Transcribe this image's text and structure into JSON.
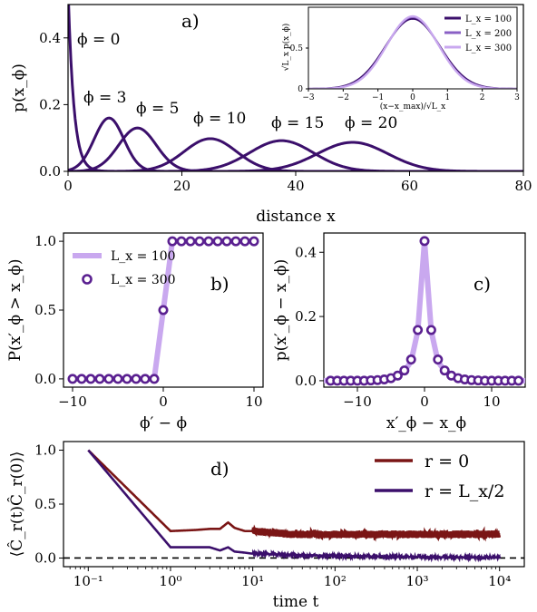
{
  "colors": {
    "dark_purple": "#3b0f6b",
    "mid_purple": "#8a60c5",
    "light_purple": "#c9a8ef",
    "dark_red": "#7a1515",
    "marker_purple": "#5a2090"
  },
  "chart_data": [
    {
      "id": "a",
      "type": "line",
      "panel_label": "a)",
      "xlabel": "distance x",
      "ylabel": "p(x_ϕ)",
      "xlim": [
        0,
        80
      ],
      "ylim": [
        0,
        0.5
      ],
      "xticks": [
        "0",
        "20",
        "40",
        "60",
        "80"
      ],
      "yticks": [
        "0.0",
        "0.2",
        "0.4"
      ],
      "annotations": [
        "ϕ = 0",
        "ϕ = 3",
        "ϕ = 5",
        "ϕ = 10",
        "ϕ = 15",
        "ϕ = 20"
      ],
      "curves": [
        {
          "phi": 0,
          "shape": "exponential",
          "peak": 0.55,
          "decay": 1.0
        },
        {
          "phi": 3,
          "mean": 7.2,
          "peak": 0.16,
          "sd": 2.6
        },
        {
          "phi": 5,
          "mean": 12.2,
          "peak": 0.13,
          "sd": 3.3
        },
        {
          "phi": 10,
          "mean": 25,
          "peak": 0.098,
          "sd": 4.6
        },
        {
          "phi": 15,
          "mean": 37.5,
          "peak": 0.092,
          "sd": 5.6
        },
        {
          "phi": 20,
          "mean": 50,
          "peak": 0.087,
          "sd": 6.2
        }
      ],
      "inset": {
        "type": "line",
        "xlabel": "(x−x_max)/√L_x",
        "ylabel": "√L_x p(x_ϕ)",
        "xlim": [
          -3,
          3
        ],
        "ylim": [
          0,
          1.0
        ],
        "xticks": [
          "−3",
          "−2",
          "−1",
          "0",
          "1",
          "2",
          "3"
        ],
        "yticks": [
          "0",
          "0.5"
        ],
        "series": [
          {
            "name": "L_x = 100",
            "peak": 0.86,
            "sd": 0.78
          },
          {
            "name": "L_x = 200",
            "peak": 0.88,
            "sd": 0.75
          },
          {
            "name": "L_x = 300",
            "peak": 0.89,
            "sd": 0.74
          }
        ]
      }
    },
    {
      "id": "b",
      "type": "line",
      "panel_label": "b)",
      "xlabel": "ϕ′ − ϕ",
      "ylabel": "P(x′_ϕ > x_ϕ)",
      "xlim": [
        -11,
        11
      ],
      "ylim": [
        -0.06,
        1.06
      ],
      "xticks": [
        "−10",
        "0",
        "10"
      ],
      "yticks": [
        "0.0",
        "0.5",
        "1.0"
      ],
      "legend_position": "upper-left",
      "series": [
        {
          "name": "L_x = 100",
          "style": "line",
          "x": [
            -10,
            -1,
            0,
            1,
            10
          ],
          "y": [
            0,
            0,
            0.5,
            1,
            1
          ]
        },
        {
          "name": "L_x = 300",
          "style": "circles",
          "x": [
            -10,
            -9,
            -8,
            -7,
            -6,
            -5,
            -4,
            -3,
            -2,
            -1,
            0,
            1,
            2,
            3,
            4,
            5,
            6,
            7,
            8,
            9,
            10
          ],
          "y": [
            0,
            0,
            0,
            0,
            0,
            0,
            0,
            0,
            0,
            0,
            0.5,
            1,
            1,
            1,
            1,
            1,
            1,
            1,
            1,
            1,
            1
          ]
        }
      ]
    },
    {
      "id": "c",
      "type": "line",
      "panel_label": "c)",
      "xlabel": "x′_ϕ − x_ϕ",
      "ylabel": "p(x′_ϕ − x_ϕ)",
      "xlim": [
        -15,
        15
      ],
      "ylim": [
        -0.02,
        0.46
      ],
      "xticks": [
        "−10",
        "0",
        "10"
      ],
      "yticks": [
        "0.0",
        "0.2",
        "0.4"
      ],
      "series": [
        {
          "name": "line",
          "style": "line",
          "x": [
            -15,
            -6,
            -4,
            -3,
            -2,
            -1,
            0,
            1,
            2,
            3,
            4,
            6,
            15
          ],
          "y": [
            0,
            0.003,
            0.015,
            0.03,
            0.06,
            0.155,
            0.435,
            0.155,
            0.06,
            0.03,
            0.015,
            0.003,
            0
          ]
        },
        {
          "name": "circles",
          "style": "circles",
          "x": [
            -14,
            -13,
            -12,
            -11,
            -10,
            -9,
            -8,
            -7,
            -6,
            -5,
            -4,
            -3,
            -2,
            -1,
            0,
            1,
            2,
            3,
            4,
            5,
            6,
            7,
            8,
            9,
            10,
            11,
            12,
            13,
            14
          ],
          "y": [
            0,
            0,
            0,
            0,
            0,
            0,
            0.001,
            0.002,
            0.004,
            0.008,
            0.016,
            0.032,
            0.066,
            0.158,
            0.435,
            0.158,
            0.066,
            0.032,
            0.016,
            0.008,
            0.004,
            0.002,
            0.001,
            0,
            0,
            0,
            0,
            0,
            0
          ]
        }
      ]
    },
    {
      "id": "d",
      "type": "line",
      "panel_label": "d)",
      "xlabel": "time t",
      "ylabel": "⟨Ĉ_r(t)Ĉ_r(0)⟩",
      "xscale": "log",
      "xlim": [
        0.05,
        20000
      ],
      "ylim": [
        -0.08,
        1.08
      ],
      "xticks": [
        "10⁻¹",
        "10⁰",
        "10¹",
        "10²",
        "10³",
        "10⁴"
      ],
      "yticks": [
        "0.0",
        "0.5",
        "1.0"
      ],
      "legend_position": "upper-right",
      "baseline": 0,
      "series": [
        {
          "name": "r = 0",
          "t": [
            0.1,
            1,
            2,
            3,
            4,
            5,
            6,
            8,
            10,
            30,
            100,
            1000,
            10000
          ],
          "value": [
            1.0,
            0.25,
            0.26,
            0.27,
            0.27,
            0.33,
            0.28,
            0.25,
            0.25,
            0.22,
            0.22,
            0.22,
            0.22
          ],
          "noise": 0.035
        },
        {
          "name": "r = L_x/2",
          "t": [
            0.1,
            1,
            2,
            3,
            4,
            5,
            6,
            8,
            10,
            30,
            100,
            1000,
            10000
          ],
          "value": [
            1.0,
            0.1,
            0.1,
            0.1,
            0.07,
            0.1,
            0.06,
            0.05,
            0.04,
            0.03,
            0.02,
            0.01,
            0.005
          ],
          "noise": 0.01
        }
      ]
    }
  ]
}
